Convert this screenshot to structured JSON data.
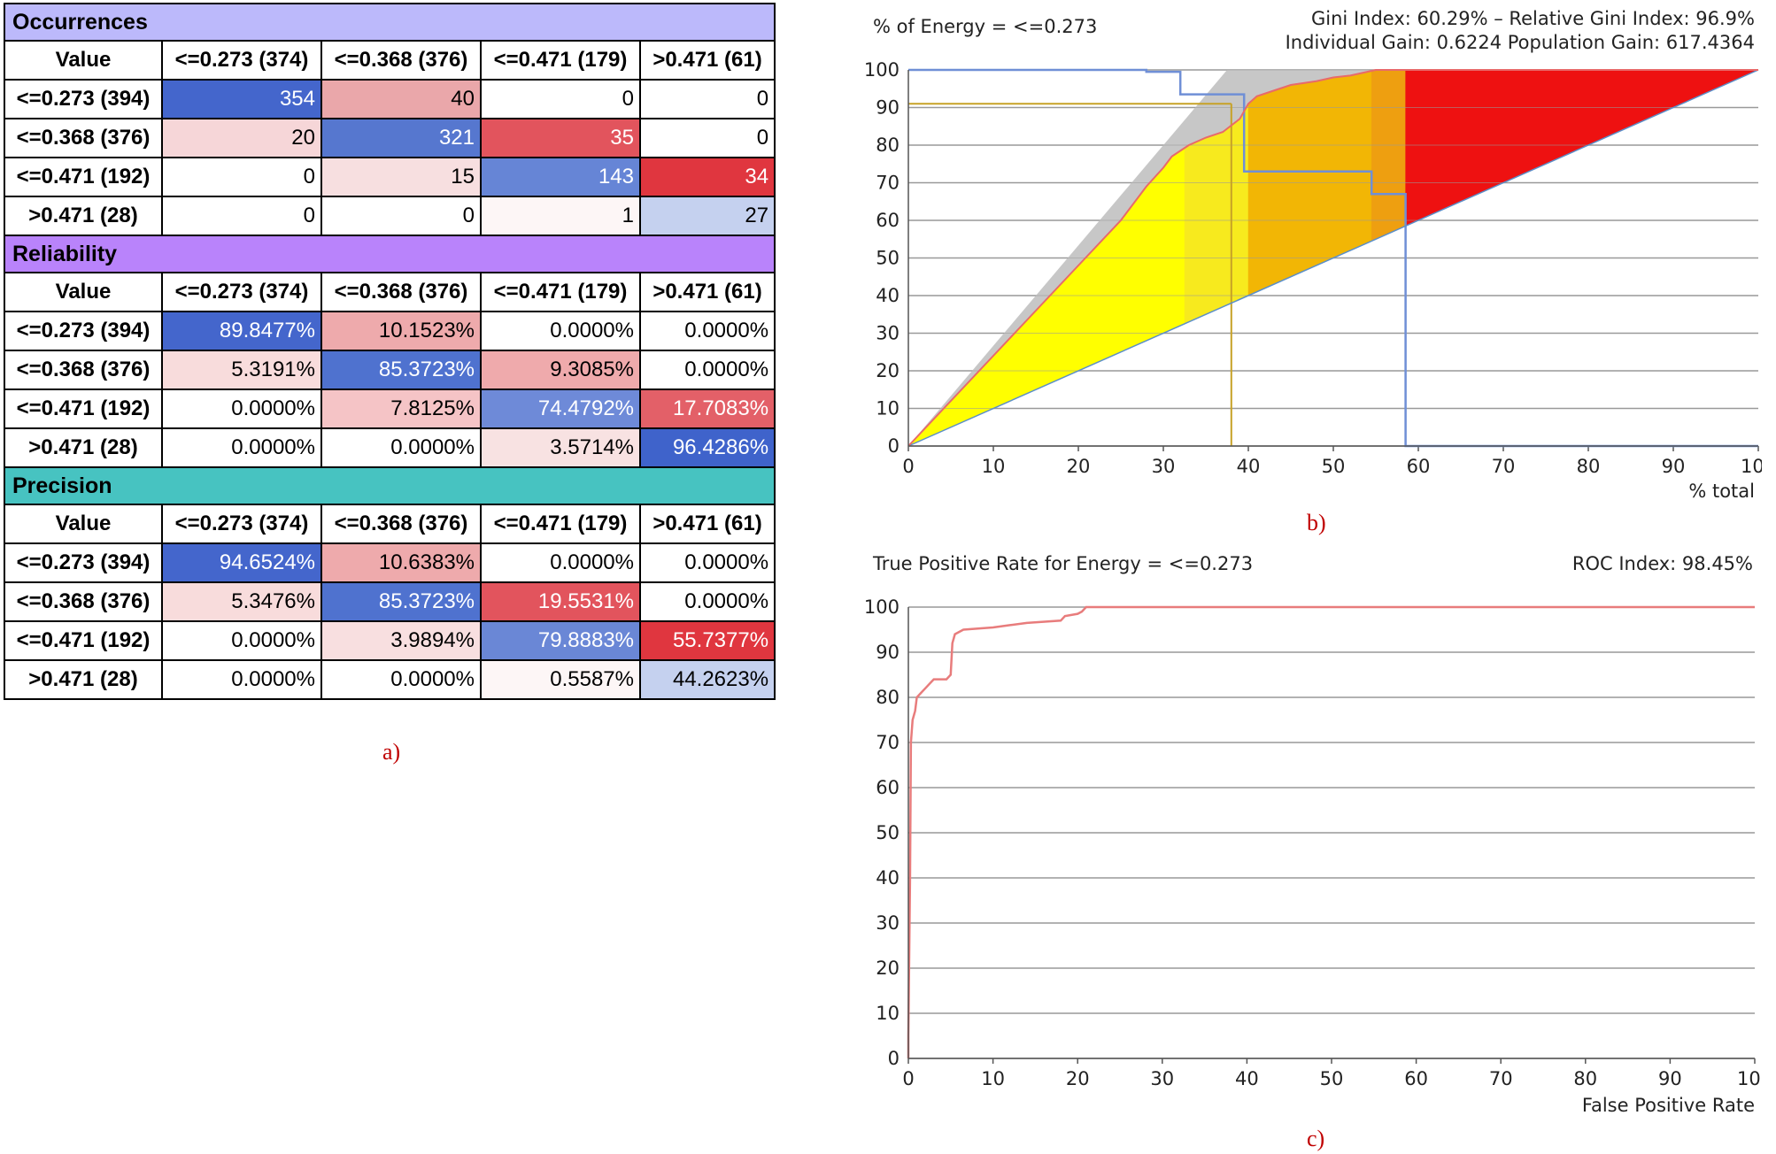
{
  "panel_a": {
    "caption": "a)",
    "col_headers": [
      "Value",
      "<=0.273 (374)",
      "<=0.368 (376)",
      "<=0.471 (179)",
      ">0.471 (61)"
    ],
    "row_headers": [
      "<=0.273 (394)",
      "<=0.368 (376)",
      "<=0.471 (192)",
      ">0.471 (28)"
    ],
    "sections": [
      {
        "title": "Occurrences",
        "color": "#bcb9fb",
        "rows": [
          [
            "354",
            "40",
            "0",
            "0"
          ],
          [
            "20",
            "321",
            "35",
            "0"
          ],
          [
            "0",
            "15",
            "143",
            "34"
          ],
          [
            "0",
            "0",
            "1",
            "27"
          ]
        ],
        "shades": [
          [
            "#4466cc",
            "#eaa7aa",
            "#ffffff",
            "#ffffff"
          ],
          [
            "#f6d6d8",
            "#5677cf",
            "#e2545d",
            "#ffffff"
          ],
          [
            "#ffffff",
            "#f7dfe0",
            "#6685d6",
            "#e0363f"
          ],
          [
            "#ffffff",
            "#ffffff",
            "#fdf6f6",
            "#c5d1ef"
          ]
        ],
        "dark": [
          [
            true,
            false,
            false,
            false
          ],
          [
            false,
            true,
            true,
            false
          ],
          [
            false,
            false,
            true,
            true
          ],
          [
            false,
            false,
            false,
            false
          ]
        ]
      },
      {
        "title": "Reliability",
        "color": "#b983fb",
        "rows": [
          [
            "89.8477%",
            "10.1523%",
            "0.0000%",
            "0.0000%"
          ],
          [
            "5.3191%",
            "85.3723%",
            "9.3085%",
            "0.0000%"
          ],
          [
            "0.0000%",
            "7.8125%",
            "74.4792%",
            "17.7083%"
          ],
          [
            "0.0000%",
            "0.0000%",
            "3.5714%",
            "96.4286%"
          ]
        ],
        "shades": [
          [
            "#4466cc",
            "#eeaaac",
            "#ffffff",
            "#ffffff"
          ],
          [
            "#f8dcdc",
            "#4f72cf",
            "#efaaac",
            "#ffffff"
          ],
          [
            "#ffffff",
            "#f5c4c6",
            "#6e8ad8",
            "#e36068"
          ],
          [
            "#ffffff",
            "#ffffff",
            "#f8e2e2",
            "#3f63cb"
          ]
        ],
        "dark": [
          [
            true,
            false,
            false,
            false
          ],
          [
            false,
            true,
            false,
            false
          ],
          [
            false,
            false,
            true,
            true
          ],
          [
            false,
            false,
            false,
            true
          ]
        ]
      },
      {
        "title": "Precision",
        "color": "#47c3c1",
        "rows": [
          [
            "94.6524%",
            "10.6383%",
            "0.0000%",
            "0.0000%"
          ],
          [
            "5.3476%",
            "85.3723%",
            "19.5531%",
            "0.0000%"
          ],
          [
            "0.0000%",
            "3.9894%",
            "79.8883%",
            "55.7377%"
          ],
          [
            "0.0000%",
            "0.0000%",
            "0.5587%",
            "44.2623%"
          ]
        ],
        "shades": [
          [
            "#4466cc",
            "#eeaaac",
            "#ffffff",
            "#ffffff"
          ],
          [
            "#f8dcdc",
            "#4f72cf",
            "#e2545d",
            "#ffffff"
          ],
          [
            "#ffffff",
            "#f8dfe0",
            "#6a87d6",
            "#e0363f"
          ],
          [
            "#ffffff",
            "#ffffff",
            "#fdf6f6",
            "#c5d1ef"
          ]
        ],
        "dark": [
          [
            true,
            false,
            false,
            false
          ],
          [
            false,
            true,
            true,
            false
          ],
          [
            false,
            false,
            true,
            true
          ],
          [
            false,
            false,
            false,
            false
          ]
        ]
      }
    ]
  },
  "chart_data": [
    {
      "type": "area",
      "panel": "b",
      "caption": "b)",
      "title": "% of Energy = <=0.273",
      "stats_line1": "Gini Index: 60.29% – Relative Gini Index: 96.9%",
      "stats_line2": "Individual Gain: 0.6224 Population Gain: 617.4364",
      "xlabel": "% total",
      "xlim": [
        0,
        100
      ],
      "ylim": [
        0,
        100
      ],
      "xticks": [
        "0",
        "10",
        "20",
        "30",
        "40",
        "50",
        "60",
        "70",
        "80",
        "90",
        "100"
      ],
      "yticks": [
        "0",
        "10",
        "20",
        "30",
        "40",
        "50",
        "60",
        "70",
        "80",
        "90",
        "100"
      ],
      "perfect_curve": [
        [
          0,
          0
        ],
        [
          37.5,
          100
        ],
        [
          100,
          100
        ]
      ],
      "gain_curve": [
        [
          0,
          0
        ],
        [
          5,
          12
        ],
        [
          10,
          24
        ],
        [
          15,
          36
        ],
        [
          20,
          48
        ],
        [
          25,
          60
        ],
        [
          28,
          69
        ],
        [
          30,
          74
        ],
        [
          31,
          77
        ],
        [
          33,
          80
        ],
        [
          35,
          82
        ],
        [
          37,
          83.5
        ],
        [
          39,
          87
        ],
        [
          40,
          91
        ],
        [
          41,
          93
        ],
        [
          43,
          94.5
        ],
        [
          45,
          96
        ],
        [
          48,
          97
        ],
        [
          50,
          98
        ],
        [
          52,
          98.5
        ],
        [
          54,
          99.5
        ],
        [
          55,
          100
        ],
        [
          100,
          100
        ]
      ],
      "baseline": [
        [
          0,
          0
        ],
        [
          100,
          100
        ]
      ],
      "fill_bands": [
        {
          "from": 0,
          "to": 32.5,
          "color": "#ffff00"
        },
        {
          "from": 32.5,
          "to": 40,
          "color": "#f7ea1e"
        },
        {
          "from": 40,
          "to": 54.5,
          "color": "#f2b605"
        },
        {
          "from": 54.5,
          "to": 58.5,
          "color": "#ee9f10"
        },
        {
          "from": 58.5,
          "to": 100,
          "color": "#ee1111"
        }
      ],
      "prob_step": [
        [
          0,
          100
        ],
        [
          28,
          100
        ],
        [
          28,
          99.5
        ],
        [
          32,
          99.5
        ],
        [
          32,
          93.5
        ],
        [
          39.5,
          93.5
        ],
        [
          39.5,
          73
        ],
        [
          54.5,
          73
        ],
        [
          54.5,
          67
        ],
        [
          58.5,
          67
        ],
        [
          58.5,
          0
        ],
        [
          100,
          0
        ]
      ],
      "marker_x": 38,
      "marker_y": 91
    },
    {
      "type": "line",
      "panel": "c",
      "caption": "c)",
      "title": "True Positive Rate for Energy = <=0.273",
      "roc_index": "ROC Index: 98.45%",
      "xlabel": "False Positive Rate",
      "xlim": [
        0,
        100
      ],
      "ylim": [
        0,
        100
      ],
      "xticks": [
        "0",
        "10",
        "20",
        "30",
        "40",
        "50",
        "60",
        "70",
        "80",
        "90",
        "100"
      ],
      "yticks": [
        "0",
        "10",
        "20",
        "30",
        "40",
        "50",
        "60",
        "70",
        "80",
        "90",
        "100"
      ],
      "series": [
        {
          "name": "ROC",
          "color": "#e87c7c",
          "points": [
            [
              0,
              0
            ],
            [
              0,
              5
            ],
            [
              0.2,
              40
            ],
            [
              0.3,
              70
            ],
            [
              0.5,
              75
            ],
            [
              0.8,
              77
            ],
            [
              1,
              80
            ],
            [
              1.5,
              81
            ],
            [
              2,
              82
            ],
            [
              2.5,
              83
            ],
            [
              3,
              84
            ],
            [
              4.5,
              84
            ],
            [
              5,
              85
            ],
            [
              5.2,
              92
            ],
            [
              5.5,
              94
            ],
            [
              6.5,
              95
            ],
            [
              10,
              95.5
            ],
            [
              12,
              96
            ],
            [
              14,
              96.5
            ],
            [
              18,
              97
            ],
            [
              18.5,
              98
            ],
            [
              20,
              98.5
            ],
            [
              20.5,
              99
            ],
            [
              21,
              100
            ],
            [
              100,
              100
            ]
          ]
        }
      ]
    }
  ]
}
